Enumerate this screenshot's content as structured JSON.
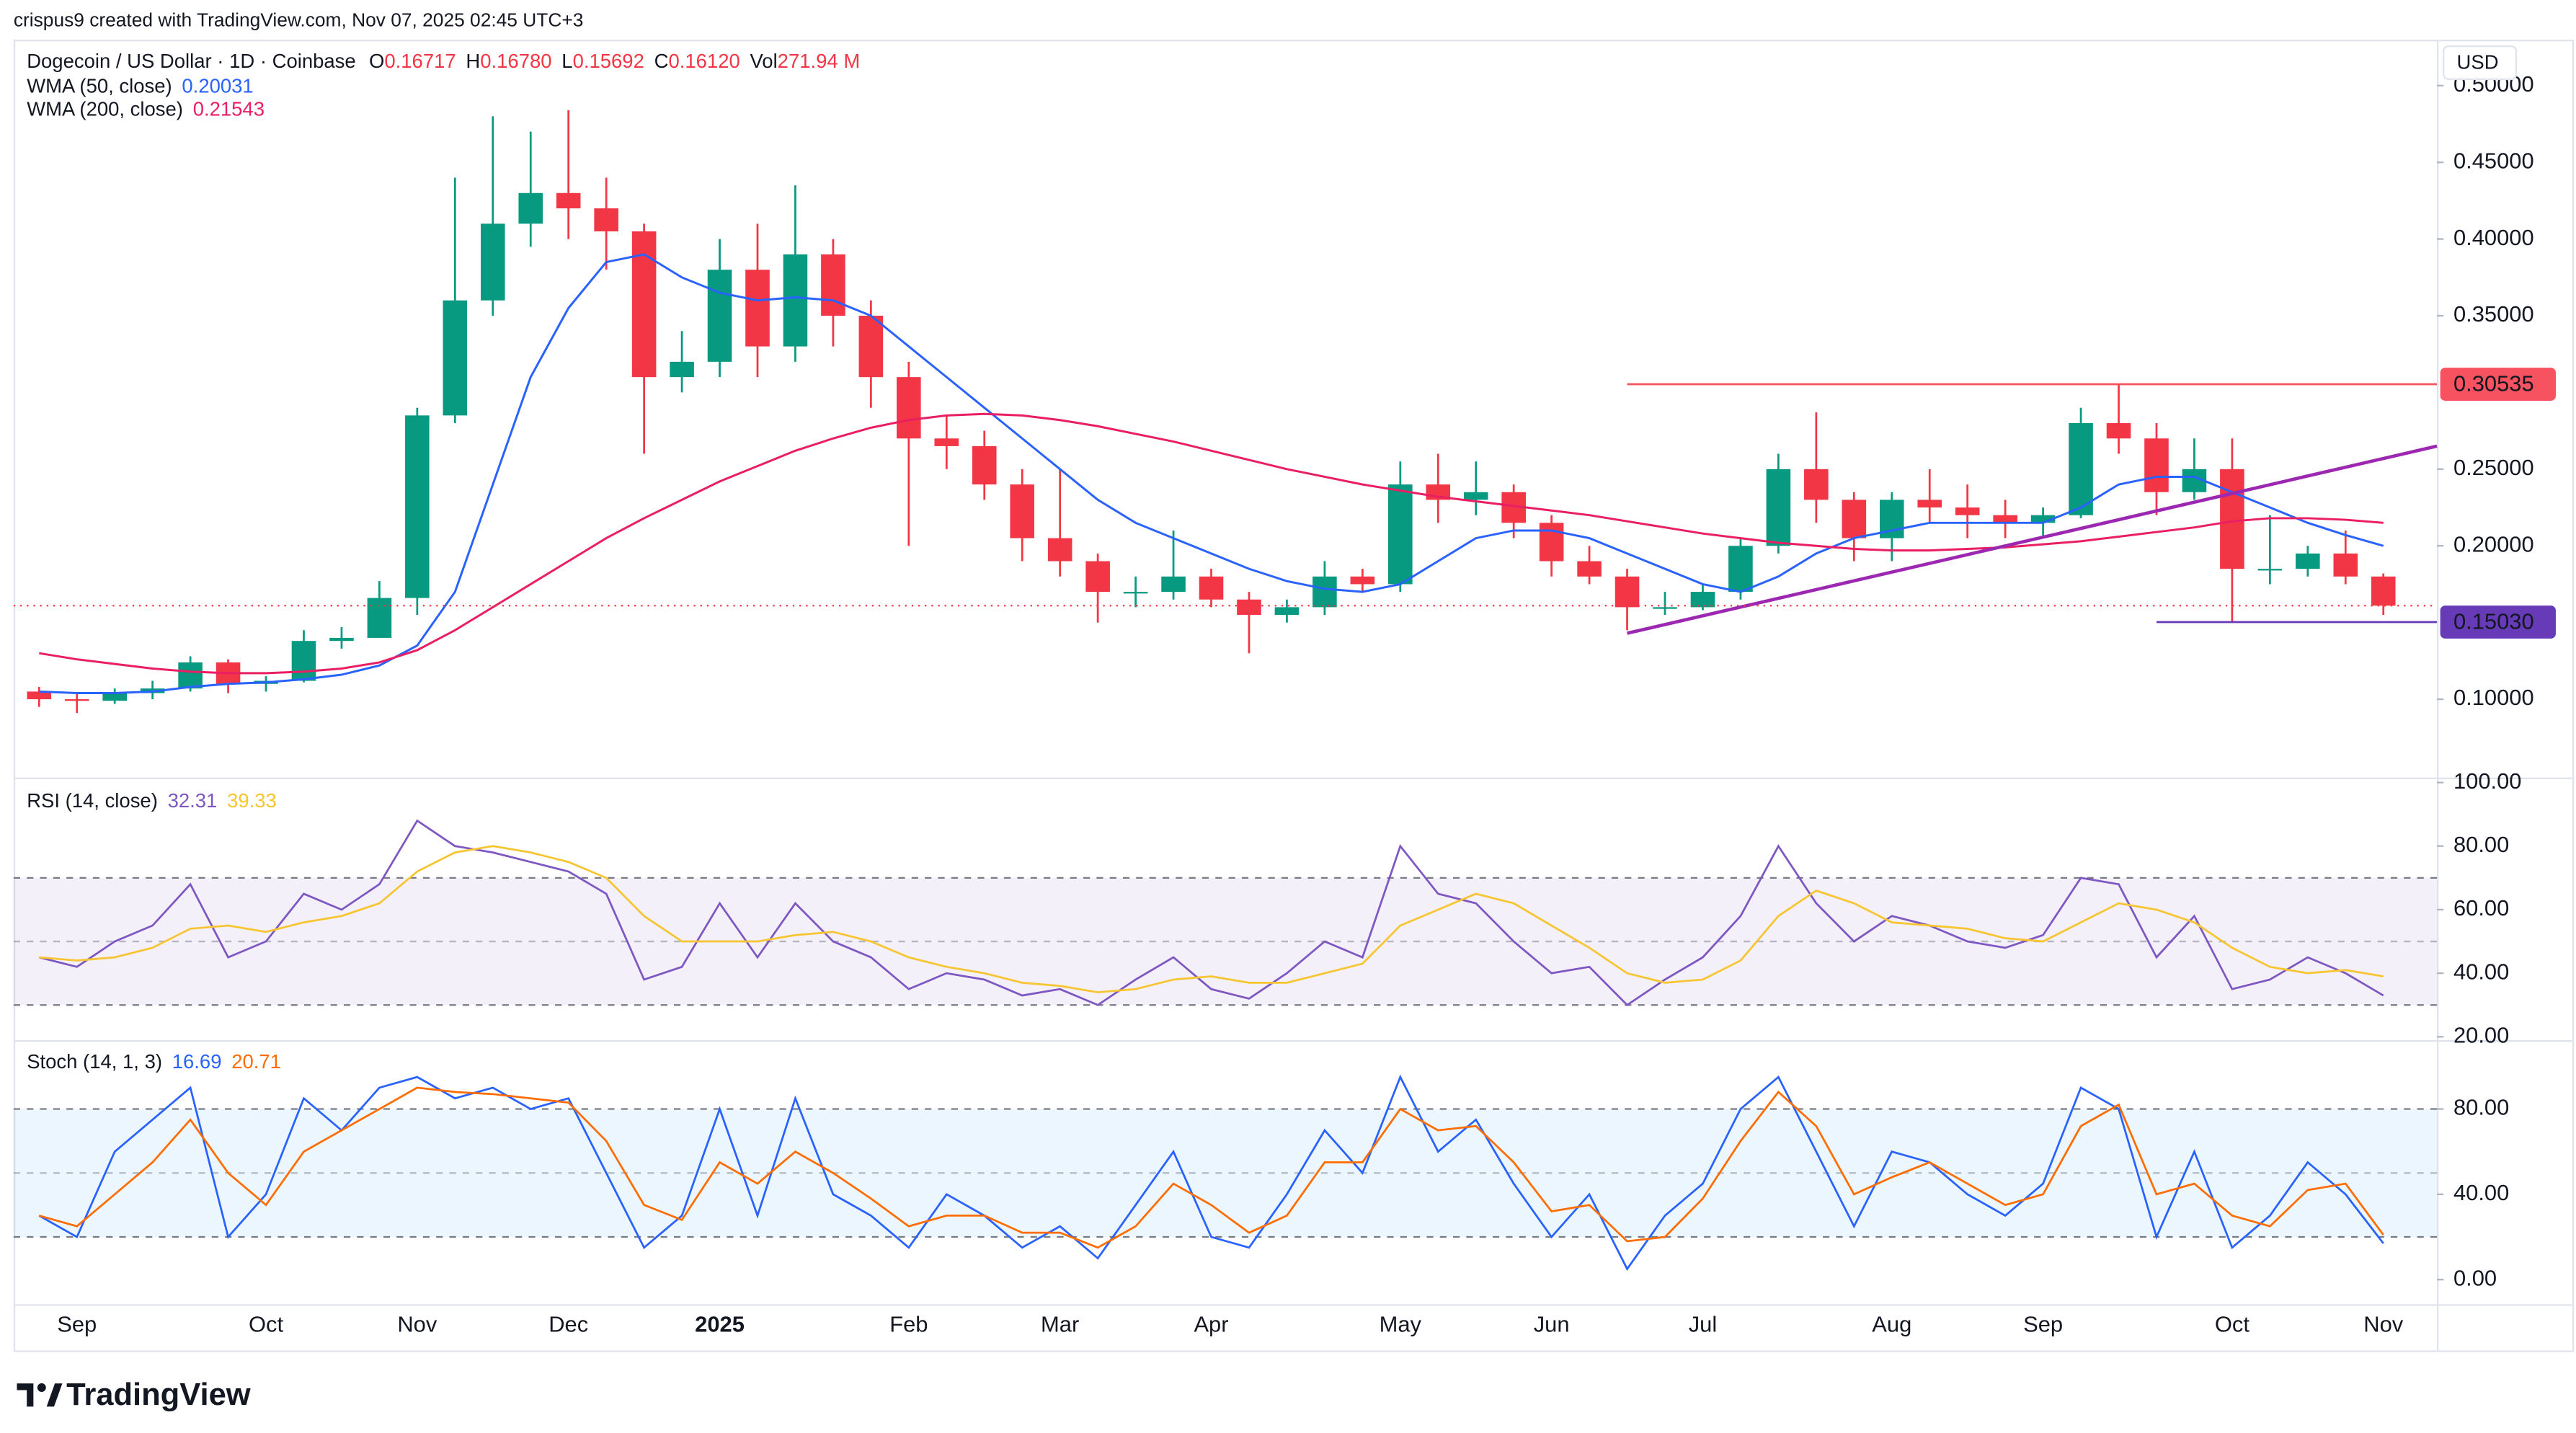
{
  "header": {
    "credit": "crispus9 created with TradingView.com, Nov 07, 2025 02:45 UTC+3",
    "symbol": "Dogecoin / US Dollar · 1D · Coinbase",
    "quote": [
      {
        "key": "O",
        "value": "0.16717"
      },
      {
        "key": "H",
        "value": "0.16780"
      },
      {
        "key": "L",
        "value": "0.15692"
      },
      {
        "key": "C",
        "value": "0.16120"
      },
      {
        "key": "Vol",
        "value": "271.94 M"
      }
    ],
    "currency": "USD"
  },
  "footer": {
    "brand": "TradingView"
  },
  "chart_data": [
    {
      "type": "candlestick",
      "up_color": "#089981",
      "down_color": "#f23645",
      "categories": [
        null,
        "Sep",
        null,
        null,
        null,
        null,
        "Oct",
        null,
        null,
        null,
        "Nov",
        null,
        null,
        null,
        "Dec",
        null,
        null,
        null,
        "2025",
        null,
        null,
        null,
        null,
        "Feb",
        null,
        null,
        null,
        "Mar",
        null,
        null,
        null,
        "Apr",
        null,
        null,
        null,
        null,
        "May",
        null,
        null,
        null,
        "Jun",
        null,
        null,
        null,
        "Jul",
        null,
        null,
        null,
        null,
        "Aug",
        null,
        null,
        null,
        "Sep",
        null,
        null,
        null,
        null,
        "Oct",
        null,
        null,
        null,
        "Nov"
      ],
      "open": [
        0.105,
        0.1,
        0.099,
        0.104,
        0.107,
        0.124,
        0.11,
        0.112,
        0.138,
        0.14,
        0.166,
        0.285,
        0.36,
        0.41,
        0.43,
        0.42,
        0.405,
        0.31,
        0.32,
        0.38,
        0.33,
        0.39,
        0.35,
        0.31,
        0.27,
        0.265,
        0.24,
        0.205,
        0.19,
        0.17,
        0.17,
        0.18,
        0.165,
        0.155,
        0.16,
        0.18,
        0.175,
        0.24,
        0.23,
        0.235,
        0.215,
        0.19,
        0.18,
        0.16,
        0.16,
        0.17,
        0.2,
        0.25,
        0.23,
        0.205,
        0.23,
        0.225,
        0.22,
        0.215,
        0.22,
        0.28,
        0.27,
        0.235,
        0.25,
        0.185,
        0.185,
        0.195,
        0.18
      ],
      "high": [
        0.108,
        0.104,
        0.107,
        0.112,
        0.128,
        0.126,
        0.115,
        0.145,
        0.147,
        0.177,
        0.29,
        0.44,
        0.48,
        0.47,
        0.484,
        0.44,
        0.41,
        0.34,
        0.4,
        0.41,
        0.435,
        0.4,
        0.36,
        0.32,
        0.285,
        0.275,
        0.25,
        0.25,
        0.195,
        0.18,
        0.21,
        0.185,
        0.17,
        0.165,
        0.19,
        0.185,
        0.255,
        0.26,
        0.255,
        0.24,
        0.22,
        0.2,
        0.185,
        0.17,
        0.175,
        0.205,
        0.26,
        0.287,
        0.235,
        0.235,
        0.25,
        0.24,
        0.23,
        0.225,
        0.29,
        0.305,
        0.28,
        0.27,
        0.27,
        0.22,
        0.2,
        0.21,
        0.182
      ],
      "low": [
        0.095,
        0.091,
        0.097,
        0.1,
        0.105,
        0.104,
        0.105,
        0.111,
        0.133,
        0.14,
        0.155,
        0.28,
        0.35,
        0.395,
        0.4,
        0.38,
        0.26,
        0.3,
        0.31,
        0.31,
        0.32,
        0.33,
        0.29,
        0.2,
        0.25,
        0.23,
        0.19,
        0.18,
        0.15,
        0.16,
        0.165,
        0.16,
        0.13,
        0.15,
        0.155,
        0.17,
        0.17,
        0.215,
        0.22,
        0.205,
        0.18,
        0.175,
        0.145,
        0.155,
        0.158,
        0.165,
        0.195,
        0.215,
        0.19,
        0.19,
        0.215,
        0.205,
        0.205,
        0.205,
        0.218,
        0.26,
        0.22,
        0.23,
        0.15,
        0.175,
        0.18,
        0.175,
        0.155
      ],
      "close": [
        0.1,
        0.099,
        0.104,
        0.107,
        0.124,
        0.11,
        0.112,
        0.138,
        0.14,
        0.166,
        0.285,
        0.36,
        0.41,
        0.43,
        0.42,
        0.405,
        0.31,
        0.32,
        0.38,
        0.33,
        0.39,
        0.35,
        0.31,
        0.27,
        0.265,
        0.24,
        0.205,
        0.19,
        0.17,
        0.17,
        0.18,
        0.165,
        0.155,
        0.16,
        0.18,
        0.175,
        0.24,
        0.23,
        0.235,
        0.215,
        0.19,
        0.18,
        0.16,
        0.16,
        0.17,
        0.2,
        0.25,
        0.23,
        0.205,
        0.23,
        0.225,
        0.22,
        0.215,
        0.22,
        0.28,
        0.27,
        0.235,
        0.25,
        0.185,
        0.185,
        0.195,
        0.18,
        0.161
      ],
      "series": [
        {
          "name": "WMA (50, close)",
          "legend_value": "0.20031",
          "color": "#2962ff",
          "values": [
            0.105,
            0.104,
            0.104,
            0.105,
            0.108,
            0.11,
            0.111,
            0.113,
            0.116,
            0.122,
            0.135,
            0.17,
            0.24,
            0.31,
            0.355,
            0.385,
            0.39,
            0.375,
            0.365,
            0.36,
            0.362,
            0.36,
            0.35,
            0.33,
            0.31,
            0.29,
            0.27,
            0.25,
            0.23,
            0.215,
            0.205,
            0.195,
            0.185,
            0.177,
            0.172,
            0.17,
            0.175,
            0.19,
            0.205,
            0.21,
            0.21,
            0.205,
            0.195,
            0.185,
            0.175,
            0.17,
            0.18,
            0.195,
            0.205,
            0.21,
            0.215,
            0.215,
            0.215,
            0.215,
            0.225,
            0.24,
            0.245,
            0.245,
            0.235,
            0.225,
            0.215,
            0.207,
            0.2
          ]
        },
        {
          "name": "WMA (200, close)",
          "legend_value": "0.21543",
          "color": "#e91e63",
          "values": [
            0.13,
            0.126,
            0.123,
            0.12,
            0.118,
            0.117,
            0.117,
            0.118,
            0.12,
            0.124,
            0.132,
            0.145,
            0.16,
            0.175,
            0.19,
            0.205,
            0.218,
            0.23,
            0.242,
            0.252,
            0.262,
            0.27,
            0.277,
            0.282,
            0.285,
            0.286,
            0.285,
            0.282,
            0.278,
            0.273,
            0.268,
            0.262,
            0.256,
            0.25,
            0.245,
            0.24,
            0.236,
            0.232,
            0.229,
            0.226,
            0.223,
            0.22,
            0.216,
            0.212,
            0.208,
            0.205,
            0.202,
            0.2,
            0.198,
            0.197,
            0.197,
            0.198,
            0.199,
            0.201,
            0.203,
            0.206,
            0.209,
            0.212,
            0.216,
            0.218,
            0.218,
            0.217,
            0.215
          ]
        }
      ],
      "hlines": [
        {
          "value": 0.30535,
          "label": "0.30535",
          "color": "#f7525f"
        },
        {
          "value": 0.1503,
          "label": "0.15030",
          "color": "#673ab7"
        }
      ],
      "trendline": {
        "values": [
          0.143,
          0.265
        ],
        "color": "#9c27b0"
      },
      "ylim": [
        0.05,
        0.53
      ],
      "yticks": [
        {
          "value": 0.5,
          "label": "0.50000"
        },
        {
          "value": 0.45,
          "label": "0.45000"
        },
        {
          "value": 0.4,
          "label": "0.40000"
        },
        {
          "value": 0.35,
          "label": "0.35000"
        },
        {
          "value": 0.25,
          "label": "0.25000"
        },
        {
          "value": 0.2,
          "label": "0.20000"
        },
        {
          "value": 0.1,
          "label": "0.10000"
        }
      ],
      "grid": false
    },
    {
      "type": "line",
      "title": "RSI (14, close)",
      "band": [
        30,
        70
      ],
      "midline": 50,
      "band_color": "#7e57c2",
      "series": [
        {
          "legend_value": "32.31",
          "color": "#7e57c2",
          "values": [
            45,
            42,
            50,
            55,
            68,
            45,
            50,
            65,
            60,
            68,
            88,
            80,
            78,
            75,
            72,
            65,
            38,
            42,
            62,
            45,
            62,
            50,
            45,
            35,
            40,
            38,
            33,
            35,
            30,
            38,
            45,
            35,
            32,
            40,
            50,
            45,
            80,
            65,
            62,
            50,
            40,
            42,
            30,
            38,
            45,
            58,
            80,
            62,
            50,
            58,
            55,
            50,
            48,
            52,
            70,
            68,
            45,
            58,
            35,
            38,
            45,
            40,
            33
          ]
        },
        {
          "legend_value": "39.33",
          "color": "#f7c531",
          "values": [
            45,
            44,
            45,
            48,
            54,
            55,
            53,
            56,
            58,
            62,
            72,
            78,
            80,
            78,
            75,
            70,
            58,
            50,
            50,
            50,
            52,
            53,
            50,
            45,
            42,
            40,
            37,
            36,
            34,
            35,
            38,
            39,
            37,
            37,
            40,
            43,
            55,
            60,
            65,
            62,
            55,
            48,
            40,
            37,
            38,
            44,
            58,
            66,
            62,
            56,
            55,
            54,
            51,
            50,
            56,
            62,
            60,
            56,
            48,
            42,
            40,
            41,
            39
          ]
        }
      ],
      "ylim": [
        20,
        100
      ],
      "yticks": [
        {
          "value": 100,
          "label": "100.00"
        },
        {
          "value": 80,
          "label": "80.00"
        },
        {
          "value": 60,
          "label": "60.00"
        },
        {
          "value": 40,
          "label": "40.00"
        },
        {
          "value": 20,
          "label": "20.00"
        }
      ]
    },
    {
      "type": "line",
      "title": "Stoch (14, 1, 3)",
      "band": [
        20,
        80
      ],
      "midline": 50,
      "band_color": "#2196f3",
      "series": [
        {
          "legend_value": "16.69",
          "color": "#2962ff",
          "values": [
            30,
            20,
            60,
            75,
            90,
            20,
            40,
            85,
            70,
            90,
            95,
            85,
            90,
            80,
            85,
            50,
            15,
            30,
            80,
            30,
            85,
            40,
            30,
            15,
            40,
            30,
            15,
            25,
            10,
            35,
            60,
            20,
            15,
            40,
            70,
            50,
            95,
            60,
            75,
            45,
            20,
            40,
            5,
            30,
            45,
            80,
            95,
            60,
            25,
            60,
            55,
            40,
            30,
            45,
            90,
            80,
            20,
            60,
            15,
            30,
            55,
            40,
            17
          ]
        },
        {
          "legend_value": "20.71",
          "color": "#ff6d00",
          "values": [
            30,
            25,
            40,
            55,
            75,
            50,
            35,
            60,
            70,
            80,
            90,
            88,
            87,
            85,
            83,
            65,
            35,
            28,
            55,
            45,
            60,
            50,
            38,
            25,
            30,
            30,
            22,
            22,
            15,
            25,
            45,
            35,
            22,
            30,
            55,
            55,
            80,
            70,
            72,
            55,
            32,
            35,
            18,
            20,
            38,
            65,
            88,
            72,
            40,
            48,
            55,
            45,
            35,
            40,
            72,
            82,
            40,
            45,
            30,
            25,
            42,
            45,
            21
          ]
        }
      ],
      "ylim": [
        -10,
        110
      ],
      "yticks": [
        {
          "value": 80,
          "label": "80.00"
        },
        {
          "value": 40,
          "label": "40.00"
        },
        {
          "value": 0,
          "label": "0.00"
        }
      ]
    }
  ]
}
